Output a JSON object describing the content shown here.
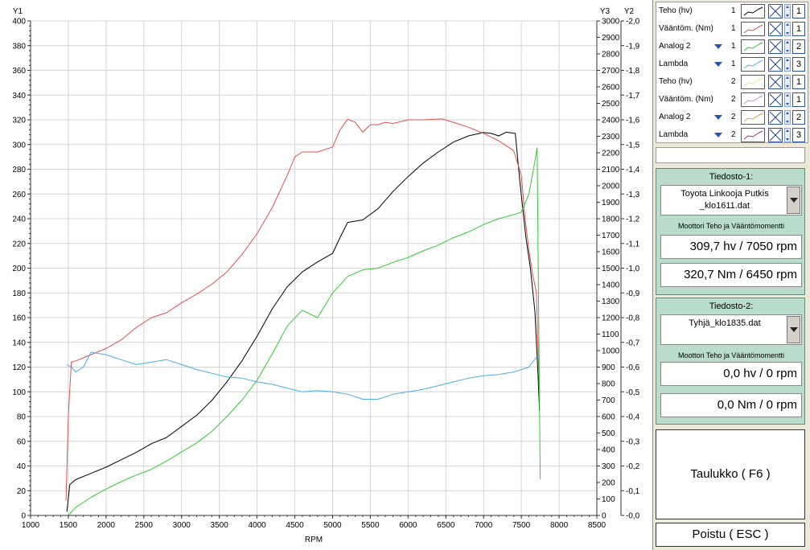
{
  "chart_data": {
    "type": "line",
    "xlabel": "RPM",
    "axis_titles": {
      "y1": "Y1",
      "y2": "Y2",
      "y3": "Y3"
    },
    "xlim": [
      1000,
      8500
    ],
    "x_ticks": [
      1000,
      1500,
      2000,
      2500,
      3000,
      3500,
      4000,
      4500,
      5000,
      5500,
      6000,
      6500,
      7000,
      7500,
      8000,
      8500
    ],
    "y1lim": [
      0,
      400
    ],
    "y1_ticks": [
      0,
      20,
      40,
      60,
      80,
      100,
      120,
      140,
      160,
      180,
      200,
      220,
      240,
      260,
      280,
      300,
      320,
      340,
      360,
      380,
      400
    ],
    "y3lim": [
      0,
      3000
    ],
    "y3_ticks": [
      "0",
      "100",
      "200",
      "300",
      "400",
      "500",
      "600",
      "700",
      "800",
      "900",
      "1000",
      "1100",
      "1200",
      "1300",
      "1400",
      "1500",
      "1600",
      "1700",
      "1800",
      "1900",
      "2000",
      "2100",
      "2200",
      "2300",
      "2400",
      "2500",
      "2600",
      "2700",
      "2800",
      "2900",
      "3000"
    ],
    "y2lim": [
      0,
      -2.0
    ],
    "y2_ticks": [
      "-0,0",
      "-0,1",
      "-0,2",
      "-0,3",
      "-0,4",
      "-0,5",
      "-0,6",
      "-0,7",
      "-0,8",
      "-0,9",
      "-1,0",
      "-1,1",
      "-1,2",
      "-1,3",
      "-1,4",
      "-1,5",
      "-1,6",
      "-1,7",
      "-1,8",
      "-1,9",
      "-2,0"
    ],
    "grid": true,
    "series": [
      {
        "name": "Teho (hv)",
        "color": "#000000",
        "axis": "y1",
        "points": [
          [
            1480,
            3
          ],
          [
            1520,
            25
          ],
          [
            1600,
            29
          ],
          [
            1800,
            34
          ],
          [
            2000,
            39
          ],
          [
            2200,
            45
          ],
          [
            2400,
            51
          ],
          [
            2600,
            58
          ],
          [
            2800,
            63
          ],
          [
            3000,
            72
          ],
          [
            3200,
            81
          ],
          [
            3400,
            93
          ],
          [
            3600,
            108
          ],
          [
            3800,
            125
          ],
          [
            4000,
            145
          ],
          [
            4200,
            167
          ],
          [
            4400,
            185
          ],
          [
            4600,
            197
          ],
          [
            4800,
            205
          ],
          [
            5000,
            212
          ],
          [
            5100,
            225
          ],
          [
            5200,
            237
          ],
          [
            5400,
            239
          ],
          [
            5600,
            248
          ],
          [
            5800,
            262
          ],
          [
            6000,
            274
          ],
          [
            6200,
            285
          ],
          [
            6400,
            294
          ],
          [
            6600,
            302
          ],
          [
            6800,
            307
          ],
          [
            7000,
            309.7
          ],
          [
            7100,
            309
          ],
          [
            7200,
            307
          ],
          [
            7300,
            310
          ],
          [
            7420,
            309
          ],
          [
            7480,
            270
          ],
          [
            7560,
            225
          ],
          [
            7620,
            200
          ],
          [
            7680,
            165
          ],
          [
            7720,
            115
          ],
          [
            7740,
            85
          ]
        ]
      },
      {
        "name": "Vääntöm. (Nm)",
        "color": "#e05050",
        "axis": "y1",
        "points": [
          [
            1470,
            12
          ],
          [
            1500,
            80
          ],
          [
            1540,
            124
          ],
          [
            1600,
            125
          ],
          [
            1800,
            130
          ],
          [
            2000,
            135
          ],
          [
            2200,
            142
          ],
          [
            2400,
            152
          ],
          [
            2600,
            160
          ],
          [
            2800,
            164
          ],
          [
            3000,
            172
          ],
          [
            3200,
            179
          ],
          [
            3400,
            187
          ],
          [
            3600,
            197
          ],
          [
            3800,
            211
          ],
          [
            4000,
            228
          ],
          [
            4200,
            249
          ],
          [
            4400,
            275
          ],
          [
            4500,
            290
          ],
          [
            4600,
            294
          ],
          [
            4800,
            294
          ],
          [
            5000,
            298
          ],
          [
            5100,
            312
          ],
          [
            5200,
            320.5
          ],
          [
            5300,
            318
          ],
          [
            5400,
            310
          ],
          [
            5500,
            316
          ],
          [
            5600,
            316
          ],
          [
            5700,
            318
          ],
          [
            5800,
            317
          ],
          [
            6000,
            320
          ],
          [
            6200,
            320
          ],
          [
            6450,
            320.7
          ],
          [
            6600,
            318
          ],
          [
            6800,
            314
          ],
          [
            7000,
            309
          ],
          [
            7200,
            303
          ],
          [
            7400,
            295
          ],
          [
            7500,
            275
          ],
          [
            7550,
            240
          ],
          [
            7600,
            215
          ],
          [
            7650,
            195
          ],
          [
            7700,
            180
          ],
          [
            7740,
            95
          ]
        ]
      },
      {
        "name": "Analog 2",
        "color": "#2ecc2e",
        "axis": "y3",
        "points": [
          [
            1500,
            2
          ],
          [
            1600,
            50
          ],
          [
            1800,
            110
          ],
          [
            2000,
            160
          ],
          [
            2200,
            205
          ],
          [
            2400,
            245
          ],
          [
            2600,
            280
          ],
          [
            2800,
            330
          ],
          [
            3000,
            385
          ],
          [
            3200,
            440
          ],
          [
            3400,
            510
          ],
          [
            3600,
            600
          ],
          [
            3800,
            700
          ],
          [
            4000,
            820
          ],
          [
            4200,
            980
          ],
          [
            4400,
            1150
          ],
          [
            4600,
            1245
          ],
          [
            4800,
            1200
          ],
          [
            5000,
            1350
          ],
          [
            5200,
            1450
          ],
          [
            5400,
            1490
          ],
          [
            5600,
            1500
          ],
          [
            5800,
            1535
          ],
          [
            6000,
            1565
          ],
          [
            6200,
            1605
          ],
          [
            6400,
            1640
          ],
          [
            6600,
            1685
          ],
          [
            6800,
            1720
          ],
          [
            7000,
            1765
          ],
          [
            7200,
            1800
          ],
          [
            7400,
            1825
          ],
          [
            7500,
            1840
          ],
          [
            7600,
            1950
          ],
          [
            7680,
            2150
          ],
          [
            7710,
            2230
          ],
          [
            7730,
            1200
          ],
          [
            7750,
            220
          ]
        ]
      },
      {
        "name": "Lambda",
        "color": "#4aaee0",
        "axis": "y2",
        "points": [
          [
            1480,
            -0.61
          ],
          [
            1540,
            -0.6
          ],
          [
            1600,
            -0.58
          ],
          [
            1700,
            -0.6
          ],
          [
            1800,
            -0.66
          ],
          [
            2000,
            -0.65
          ],
          [
            2200,
            -0.63
          ],
          [
            2400,
            -0.61
          ],
          [
            2600,
            -0.62
          ],
          [
            2800,
            -0.63
          ],
          [
            3000,
            -0.61
          ],
          [
            3200,
            -0.59
          ],
          [
            3400,
            -0.575
          ],
          [
            3600,
            -0.56
          ],
          [
            3800,
            -0.555
          ],
          [
            4000,
            -0.54
          ],
          [
            4200,
            -0.53
          ],
          [
            4400,
            -0.515
          ],
          [
            4600,
            -0.5
          ],
          [
            4800,
            -0.505
          ],
          [
            5000,
            -0.5
          ],
          [
            5200,
            -0.49
          ],
          [
            5400,
            -0.47
          ],
          [
            5600,
            -0.47
          ],
          [
            5800,
            -0.49
          ],
          [
            6000,
            -0.5
          ],
          [
            6200,
            -0.51
          ],
          [
            6400,
            -0.525
          ],
          [
            6600,
            -0.54
          ],
          [
            6800,
            -0.555
          ],
          [
            7000,
            -0.565
          ],
          [
            7200,
            -0.57
          ],
          [
            7400,
            -0.58
          ],
          [
            7600,
            -0.6
          ],
          [
            7700,
            -0.64
          ],
          [
            7740,
            -0.64
          ]
        ]
      }
    ]
  },
  "legend": [
    {
      "label": "Teho (hv)",
      "arrow": false,
      "num": "1",
      "color": "#000000",
      "index": "1"
    },
    {
      "label": "Vääntöm. (Nm)",
      "arrow": false,
      "num": "1",
      "color": "#e05050",
      "index": "1"
    },
    {
      "label": "Analog 2",
      "arrow": true,
      "num": "1",
      "color": "#2ecc2e",
      "index": "2"
    },
    {
      "label": "Lambda",
      "arrow": true,
      "num": "1",
      "color": "#4aaee0",
      "index": "3"
    },
    {
      "label": "Teho (hv)",
      "arrow": false,
      "num": "2",
      "color": "#e6e68a",
      "index": "1"
    },
    {
      "label": "Vääntöm. (Nm)",
      "arrow": false,
      "num": "2",
      "color": "#c88ad8",
      "index": "1"
    },
    {
      "label": "Analog 2",
      "arrow": true,
      "num": "2",
      "color": "#e0a030",
      "index": "2"
    },
    {
      "label": "Lambda",
      "arrow": true,
      "num": "2",
      "color": "#b0306a",
      "index": "3"
    }
  ],
  "file1": {
    "title": "Tiedosto-1:",
    "filename": "Toyota Linkooja Putkis\n_klo1611.dat",
    "caption": "Moottori Teho ja Vääntömomentti",
    "power": "309,7 hv / 7050 rpm",
    "torque": "320,7 Nm / 6450 rpm"
  },
  "file2": {
    "title": "Tiedosto-2:",
    "filename": "Tyhjä_klo1835.dat",
    "caption": "Moottori Teho ja Vääntömomentti",
    "power": "0,0 hv / 0 rpm",
    "torque": "0,0 Nm / 0 rpm"
  },
  "buttons": {
    "table": "Taulukko ( F6 )",
    "exit": "Poistu ( ESC )"
  }
}
